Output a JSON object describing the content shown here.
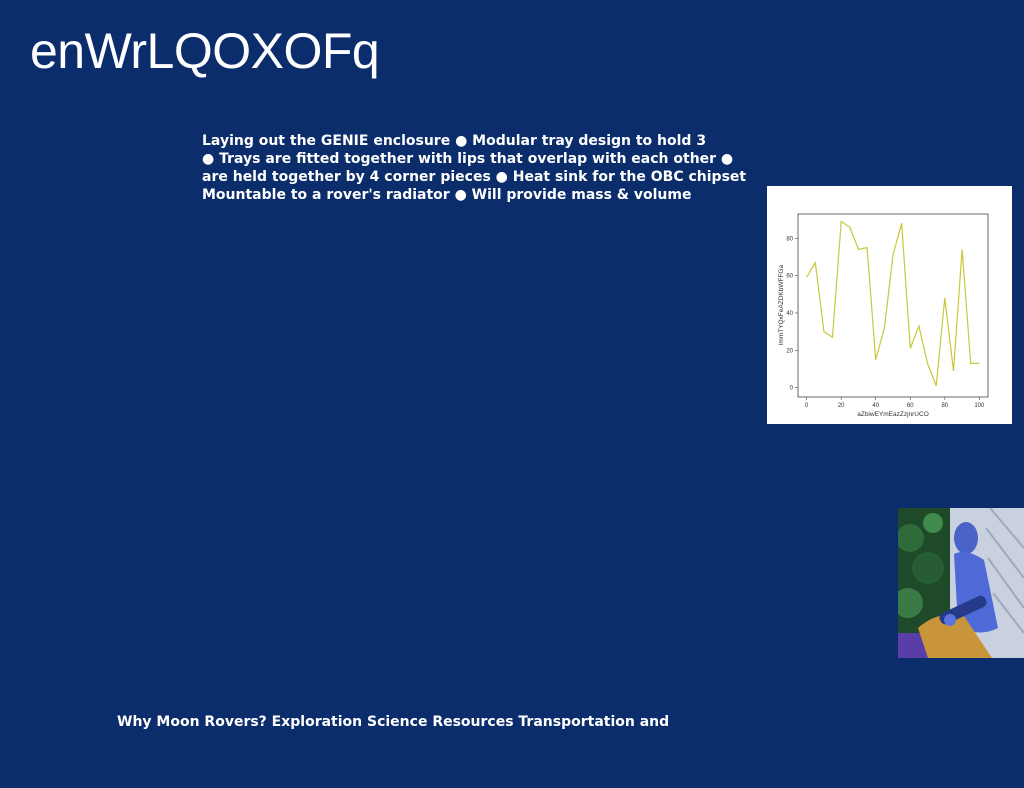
{
  "slide": {
    "title": "enWrLQOXOFq",
    "bullet_lines": [
      "Laying out the GENIE enclosure ● Modular tray design to hold 3",
      "● Trays are fitted together with lips that overlap with each other ●",
      "are held together by 4 corner pieces ● Heat sink for the OBC chipset",
      "Mountable to a rover's radiator ● Will provide mass & volume"
    ],
    "footer": "Why Moon Rovers? Exploration Science Resources Transportation and"
  },
  "colors": {
    "background": "#0c2d6b",
    "line": "#c8c83a"
  },
  "chart_data": {
    "type": "line",
    "xlabel": "aZbiwEYmEazZzjnrUCO",
    "ylabel": "lmmTYQxFeAZDKbWFFGa",
    "xlim": [
      -5,
      105
    ],
    "ylim": [
      -5,
      93
    ],
    "xticks": [
      0,
      20,
      40,
      60,
      80,
      100
    ],
    "yticks": [
      0,
      20,
      40,
      60,
      80
    ],
    "grid": false,
    "series": [
      {
        "x": [
          0,
          5,
          10,
          15,
          20,
          25,
          30,
          35,
          40,
          45,
          50,
          55,
          60,
          65,
          70,
          75,
          80,
          85,
          90,
          95,
          100
        ],
        "values": [
          59,
          67,
          30,
          27,
          89,
          86,
          74,
          75,
          15,
          32,
          71,
          88,
          21,
          33,
          13,
          1,
          48,
          9,
          74,
          13,
          13
        ]
      }
    ]
  }
}
